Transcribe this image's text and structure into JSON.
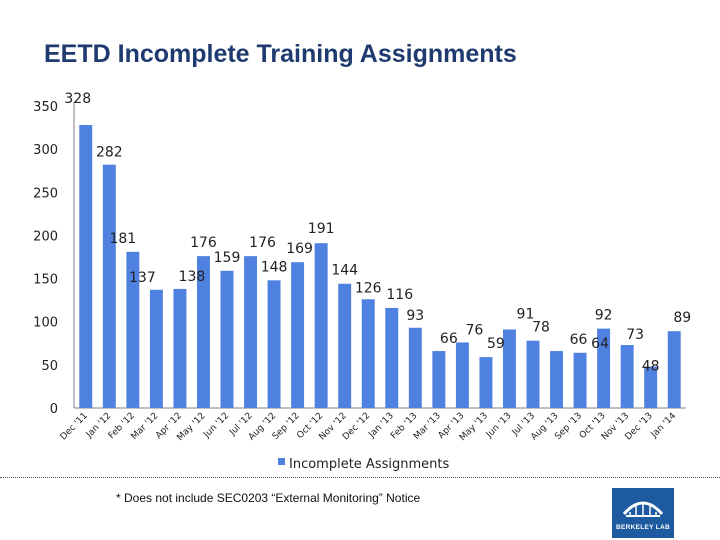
{
  "header": {
    "title": "EETD Incomplete Training Assignments"
  },
  "chart_data": {
    "type": "bar",
    "title": "EETD Incomplete Training Assignments",
    "xlabel": "",
    "ylabel": "",
    "ylim": [
      0,
      350
    ],
    "yticks": [
      "350",
      "300",
      "250",
      "200",
      "150",
      "100",
      "50",
      "0"
    ],
    "categories": [
      "Dec '11",
      "Jan '12",
      "Feb '12",
      "Mar '12",
      "Apr '12",
      "May '12",
      "Jun '12",
      "Jul '12",
      "Aug '12",
      "Sep '12",
      "Oct '12",
      "Nov '12",
      "Dec '12",
      "Jan '13",
      "Feb '13",
      "Mar '13",
      "Apr '13",
      "May '13",
      "Jun '13",
      "Jul '13",
      "Aug '13",
      "Sep '13",
      "Oct '13",
      "Nov '13",
      "Dec '13",
      "Jan '14"
    ],
    "series": [
      {
        "name": "Incomplete Assignments",
        "values": [
          328,
          282,
          181,
          137,
          138,
          176,
          159,
          176,
          148,
          169,
          191,
          144,
          126,
          116,
          93,
          66,
          76,
          59,
          91,
          78,
          66,
          64,
          92,
          73,
          48,
          89
        ],
        "labels": [
          "328",
          "282",
          "181",
          "137",
          "138",
          "176",
          "159",
          "176",
          "148",
          "169",
          "191",
          "144",
          "126",
          "116",
          "93",
          "66",
          "76",
          "59",
          "91",
          "78",
          "66",
          "64",
          "92",
          "73",
          "48",
          "89"
        ]
      }
    ],
    "legend": "bottom",
    "colors": {
      "bar": "#4f81e0",
      "axis": "#808080"
    }
  },
  "footnote": "* Does not include SEC0203 “External Monitoring” Notice",
  "logo": {
    "text": "BERKELEY LAB",
    "icon": "berkeley-lab-logo-icon"
  }
}
